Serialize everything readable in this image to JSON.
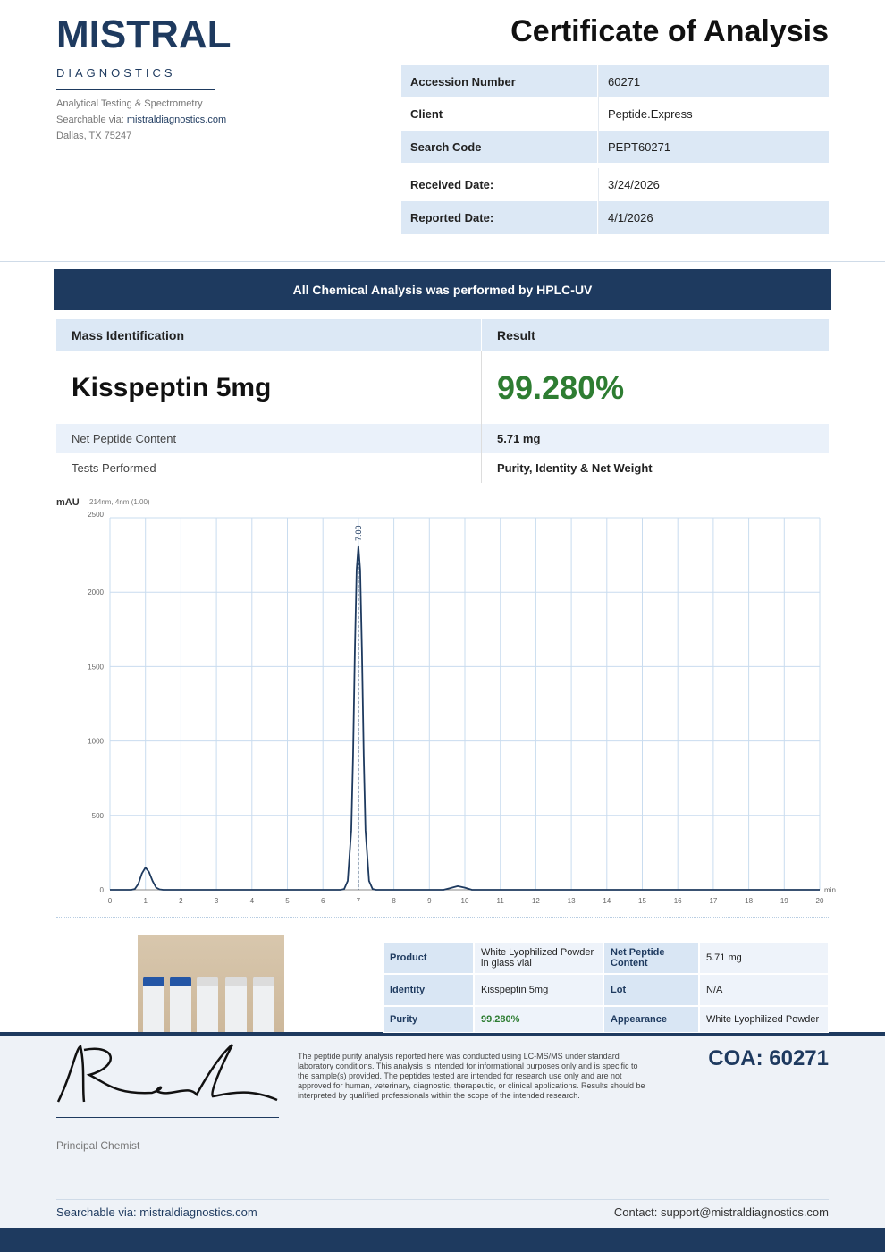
{
  "header": {
    "brand": "MISTRAL",
    "division": "DIAGNOSTICS",
    "tagline": "Analytical Testing & Spectrometry",
    "search_label": "Searchable via:",
    "search_url": "mistraldiagnostics.com",
    "address": "Dallas, TX 75247",
    "title": "Certificate of Analysis"
  },
  "info_table": {
    "rows": [
      [
        "Accession Number",
        "60271"
      ],
      [
        "Client",
        "Peptide.Express"
      ],
      [
        "Search Code",
        "PEPT60271"
      ],
      [
        "Received Date:",
        "3/24/2026"
      ],
      [
        "Reported Date:",
        "4/1/2026"
      ]
    ]
  },
  "banner": "All Chemical Analysis was performed by HPLC-UV",
  "results": {
    "headers": [
      "Mass Identification",
      "Result"
    ],
    "product": "Kisspeptin 5mg",
    "purity": "99.280%",
    "rows": [
      [
        "Net Peptide Content",
        "5.71 mg"
      ],
      [
        "Tests Performed",
        "Purity, Identity & Net Weight"
      ]
    ]
  },
  "chart_data": {
    "type": "line",
    "y_label": "mAU",
    "subtitle": "214nm, 4nm (1.00)",
    "x_label": "min",
    "color": "#1e3a5f",
    "grid": true,
    "xlim": [
      0,
      20
    ],
    "ylim": [
      0,
      2500
    ],
    "xticks": [
      0,
      1,
      2,
      3,
      4,
      5,
      6,
      7,
      8,
      9,
      10,
      11,
      12,
      13,
      14,
      15,
      16,
      17,
      18,
      19,
      20
    ],
    "yticks": [
      0,
      500,
      1000,
      1500,
      2000,
      2500
    ],
    "x": [
      0,
      0.6,
      0.7,
      0.8,
      0.9,
      1.0,
      1.1,
      1.2,
      1.3,
      1.4,
      1.5,
      6.5,
      6.6,
      6.7,
      6.8,
      6.85,
      6.9,
      6.95,
      7.0,
      7.05,
      7.1,
      7.15,
      7.2,
      7.3,
      7.4,
      7.5,
      9.4,
      9.6,
      9.8,
      10.0,
      10.2,
      20
    ],
    "values": [
      0,
      0,
      5,
      40,
      110,
      150,
      120,
      60,
      15,
      3,
      0,
      0,
      5,
      60,
      400,
      900,
      1600,
      2150,
      2310,
      2150,
      1600,
      900,
      400,
      60,
      5,
      0,
      0,
      12,
      25,
      14,
      0,
      0
    ],
    "annotations": [
      {
        "text": "7.00",
        "x": 7
      }
    ]
  },
  "details": {
    "rows": [
      [
        "Product",
        "White Lyophilized Powder in glass vial",
        "Net Peptide Content",
        "5.71 mg"
      ],
      [
        "Identity",
        "Kisspeptin 5mg",
        "Lot",
        "N/A"
      ],
      [
        "Purity",
        "99.280%",
        "Appearance",
        "White Lyophilized Powder"
      ]
    ]
  },
  "footer": {
    "disclaimer": "The peptide purity analysis reported here was conducted using LC-MS/MS under standard laboratory conditions. This analysis is intended for informational purposes only and is specific to the sample(s) provided. The peptides tested are intended for research use only and are not approved for human, veterinary, diagnostic, therapeutic, or clinical applications. Results should be interpreted by qualified professionals within the scope of the intended research.",
    "signature_role": "Principal Chemist",
    "coa": "COA: 60271",
    "searchable": "Searchable via: mistraldiagnostics.com",
    "contact": "Contact: support@mistraldiagnostics.com"
  }
}
